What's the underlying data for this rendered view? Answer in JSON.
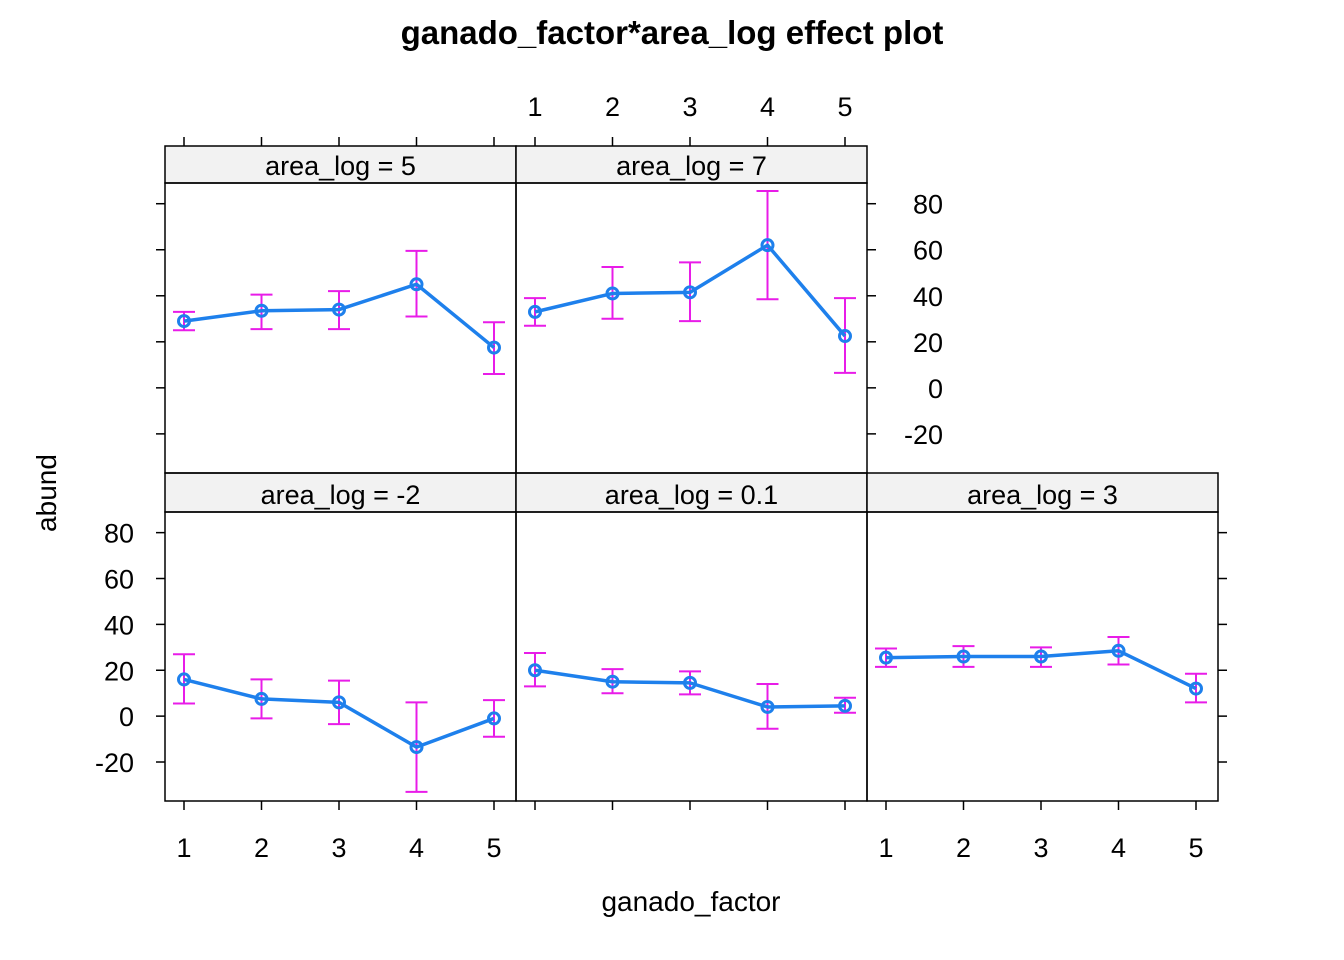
{
  "chart_data": {
    "type": "line",
    "title": "ganado_factor*area_log effect plot",
    "xlabel": "ganado_factor",
    "ylabel": "abund",
    "x_categories": [
      "1",
      "2",
      "3",
      "4",
      "5"
    ],
    "yticks": [
      "-20",
      "0",
      "20",
      "40",
      "60",
      "80"
    ],
    "ylim": [
      -37,
      89
    ],
    "colors": {
      "line": "#1E80EC",
      "errorbar": "#E81CE8",
      "strip": "#F2F2F2"
    },
    "panels": [
      {
        "label": "area_log = -2",
        "fit": [
          16,
          7.5,
          6,
          -13.5,
          -1
        ],
        "lower": [
          5.5,
          -1,
          -3.5,
          -33,
          -9
        ],
        "upper": [
          27,
          16,
          15.5,
          6,
          7
        ]
      },
      {
        "label": "area_log = 0.1",
        "fit": [
          20,
          15,
          14.5,
          4,
          4.5
        ],
        "lower": [
          13,
          10,
          9.5,
          -5.5,
          1.5
        ],
        "upper": [
          27.5,
          20.5,
          19.5,
          14,
          8
        ]
      },
      {
        "label": "area_log = 3",
        "fit": [
          25.5,
          26,
          26,
          28.5,
          12
        ],
        "lower": [
          21.5,
          21.5,
          21.5,
          22.5,
          6
        ],
        "upper": [
          29.5,
          30.5,
          30,
          34.5,
          18.5
        ]
      },
      {
        "label": "area_log = 5",
        "fit": [
          29,
          33.5,
          34,
          45,
          17.5
        ],
        "lower": [
          25,
          25.5,
          25.5,
          31,
          6
        ],
        "upper": [
          33,
          40.5,
          42,
          59.5,
          28.5
        ]
      },
      {
        "label": "area_log = 7",
        "fit": [
          33,
          41,
          41.5,
          62,
          22.5
        ],
        "lower": [
          27,
          30,
          29,
          38.5,
          6.5
        ],
        "upper": [
          39,
          52.5,
          54.5,
          85.5,
          39
        ]
      }
    ]
  }
}
